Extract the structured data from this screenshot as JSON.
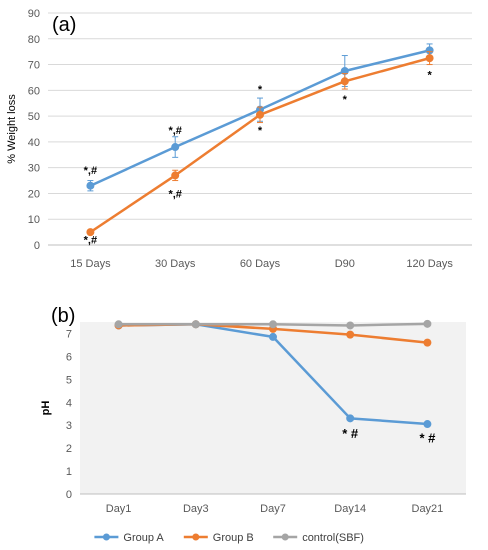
{
  "colors": {
    "group_a": "#5B9BD5",
    "group_b": "#ED7D31",
    "control": "#A5A5A5",
    "grid": "#D9D9D9",
    "plot_bg_b": "#F2F2F2"
  },
  "chart_data": [
    {
      "type": "line",
      "panel_label": "(a)",
      "title": "",
      "xlabel": "",
      "ylabel": "% Weight loss",
      "categories": [
        "15 Days",
        "30 Days",
        "60 Days",
        "D90",
        "120 Days"
      ],
      "ylim": [
        0,
        90
      ],
      "yticks": [
        0,
        10,
        20,
        30,
        40,
        50,
        60,
        70,
        80,
        90
      ],
      "grid": true,
      "series": [
        {
          "key": "A",
          "values": [
            23,
            38,
            52.5,
            67.5,
            75.5
          ],
          "errors": [
            2,
            4,
            4.5,
            6,
            2.5
          ]
        },
        {
          "key": "B",
          "values": [
            5,
            27,
            50.5,
            63.5,
            72.5
          ],
          "errors": [
            0.5,
            2,
            3,
            3,
            2.5
          ]
        }
      ],
      "annotations": [
        {
          "text": "*,#",
          "category": "15 Days",
          "y": 27.5,
          "bold": false
        },
        {
          "text": "*,#",
          "category": "15 Days",
          "y": 0.5,
          "bold": false
        },
        {
          "text": "*,#",
          "category": "30 Days",
          "y": 43,
          "bold": false
        },
        {
          "text": "*,#",
          "category": "30 Days",
          "y": 18.5,
          "bold": false
        },
        {
          "text": "*",
          "category": "60 Days",
          "y": 59,
          "bold": false
        },
        {
          "text": "*",
          "category": "60 Days",
          "y": 43,
          "bold": false
        },
        {
          "text": "*",
          "category": "D90",
          "y": 55,
          "bold": false
        },
        {
          "text": "*",
          "category": "120 Days",
          "y": 64.5,
          "bold": false
        }
      ]
    },
    {
      "type": "line",
      "panel_label": "(b)",
      "title": "",
      "xlabel": "",
      "ylabel": "pH",
      "categories": [
        "Day1",
        "Day3",
        "Day7",
        "Day14",
        "Day21"
      ],
      "ylim": [
        0,
        7.5
      ],
      "yticks": [
        0,
        1,
        2,
        3,
        4,
        5,
        6,
        7
      ],
      "grid": false,
      "legend_position": "bottom",
      "series": [
        {
          "key": "A",
          "name": "Group A",
          "values": [
            7.35,
            7.4,
            6.85,
            3.3,
            3.05
          ]
        },
        {
          "key": "B",
          "name": "Group B",
          "values": [
            7.35,
            7.4,
            7.2,
            6.95,
            6.6
          ]
        },
        {
          "key": "C",
          "name": "control(SBF)",
          "values": [
            7.4,
            7.4,
            7.4,
            7.35,
            7.42
          ]
        }
      ],
      "annotations": [
        {
          "text": "* #",
          "category": "Day14",
          "y": 2.45
        },
        {
          "text": "* #",
          "category": "Day21",
          "y": 2.25
        }
      ]
    }
  ]
}
